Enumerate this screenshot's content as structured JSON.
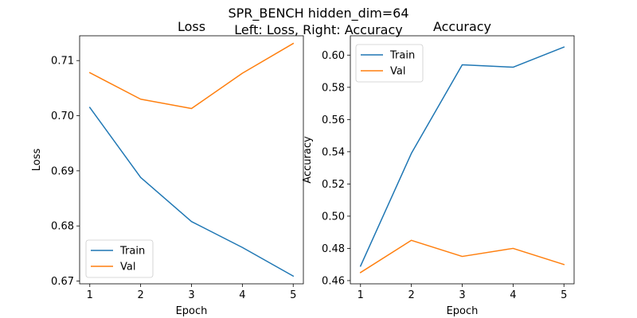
{
  "figure": {
    "suptitle_line1": "SPR_BENCH hidden_dim=64",
    "suptitle_line2": "Left: Loss, Right: Accuracy"
  },
  "colors": {
    "train": "#1f77b4",
    "val": "#ff7f0e"
  },
  "chart_data": [
    {
      "type": "line",
      "title": "Loss",
      "xlabel": "Epoch",
      "ylabel": "Loss",
      "x": [
        1,
        2,
        3,
        4,
        5
      ],
      "xticks": [
        "1",
        "2",
        "3",
        "4",
        "5"
      ],
      "yticks": [
        "0.67",
        "0.68",
        "0.69",
        "0.70",
        "0.71"
      ],
      "ylim": [
        0.6695,
        0.7145
      ],
      "grid": false,
      "legend": "lower-left",
      "series": [
        {
          "name": "Train",
          "values": [
            0.7015,
            0.6888,
            0.6808,
            0.6761,
            0.6709
          ]
        },
        {
          "name": "Val",
          "values": [
            0.7078,
            0.703,
            0.7013,
            0.7077,
            0.7131
          ]
        }
      ]
    },
    {
      "type": "line",
      "title": "Accuracy",
      "xlabel": "Epoch",
      "ylabel": "Accuracy",
      "x": [
        1,
        2,
        3,
        4,
        5
      ],
      "xticks": [
        "1",
        "2",
        "3",
        "4",
        "5"
      ],
      "yticks": [
        "0.46",
        "0.48",
        "0.50",
        "0.52",
        "0.54",
        "0.56",
        "0.58",
        "0.60"
      ],
      "ylim": [
        0.458,
        0.612
      ],
      "grid": false,
      "legend": "upper-left",
      "series": [
        {
          "name": "Train",
          "values": [
            0.469,
            0.539,
            0.594,
            0.5925,
            0.605
          ]
        },
        {
          "name": "Val",
          "values": [
            0.465,
            0.485,
            0.475,
            0.48,
            0.47
          ]
        }
      ]
    }
  ]
}
